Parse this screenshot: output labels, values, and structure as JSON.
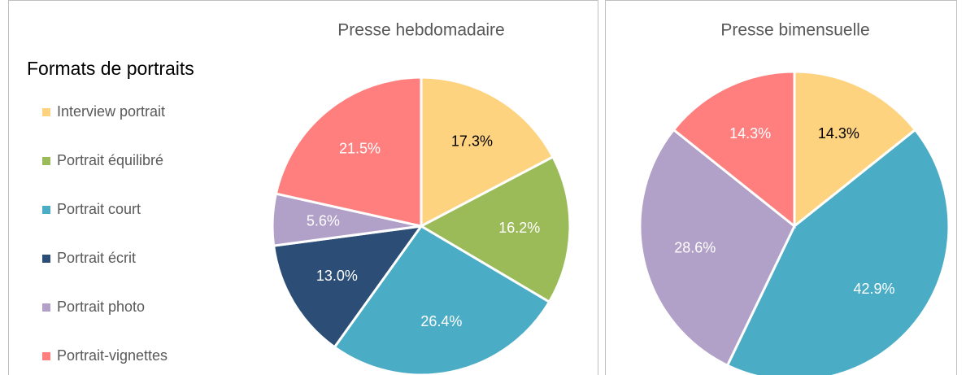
{
  "chart_data": [
    {
      "type": "pie",
      "title": "Presse hebdomadaire",
      "legend_title": "Formats de portraits",
      "categories": [
        "Interview portrait",
        "Portrait équilibré",
        "Portrait court",
        "Portrait écrit",
        "Portrait photo",
        "Portrait-vignettes"
      ],
      "colors": [
        "#fed37f",
        "#9bbb59",
        "#4bacc6",
        "#2c4d75",
        "#b1a0c7",
        "#ff7f7f"
      ],
      "values": [
        17.3,
        16.2,
        26.4,
        13.0,
        5.6,
        21.5
      ],
      "value_labels": [
        "17.3%",
        "16.2%",
        "26.4%",
        "13.0%",
        "5.6%",
        "21.5%"
      ]
    },
    {
      "type": "pie",
      "title": "Presse bimensuelle",
      "categories": [
        "Interview portrait",
        "Portrait court",
        "Portrait photo",
        "Portrait-vignettes"
      ],
      "values": [
        14.3,
        42.9,
        28.6,
        14.3
      ],
      "value_labels": [
        "14.3%",
        "42.9%",
        "28.6%",
        "14.3%"
      ]
    }
  ]
}
